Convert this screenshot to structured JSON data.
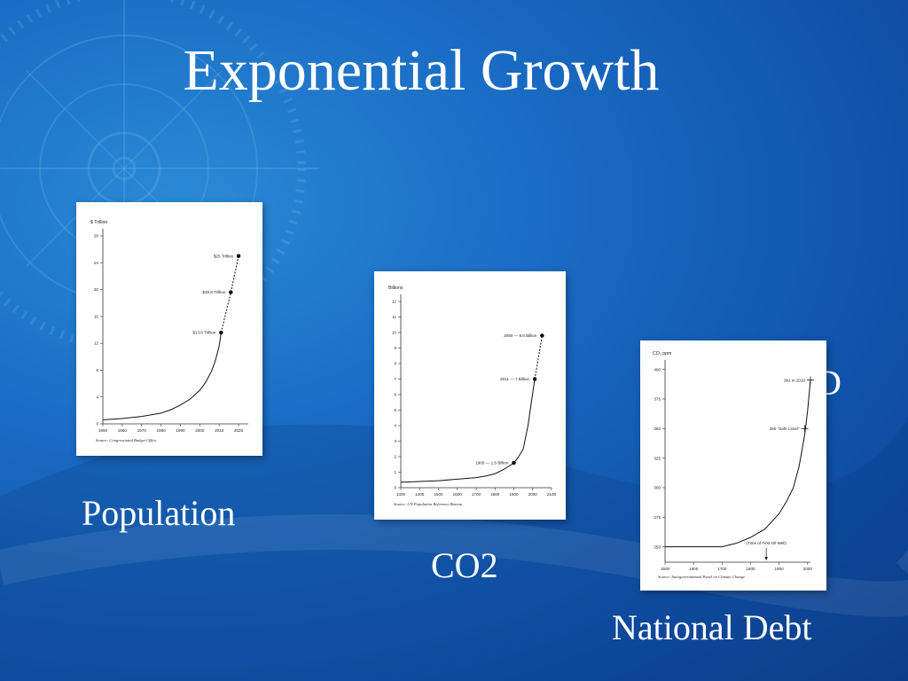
{
  "slide": {
    "title": "Exponential Growth",
    "captions": {
      "population": "Population",
      "co2": "CO2",
      "debt": "National Debt"
    },
    "ghost_text": "D"
  },
  "chart_data": [
    {
      "id": "debt",
      "type": "line",
      "ylabel": "$ Trillion",
      "ylim": [
        0,
        28
      ],
      "yticks": [
        0,
        4,
        8,
        12,
        16,
        20,
        24,
        28
      ],
      "xlim": [
        1950,
        2025
      ],
      "xticks": [
        1950,
        1960,
        1970,
        1980,
        1990,
        2000,
        2010,
        2020
      ],
      "source": "Source: Congressional Budget Office",
      "series": [
        {
          "style": "solid",
          "x": [
            1950,
            1960,
            1970,
            1980,
            1985,
            1990,
            1995,
            2000,
            2003,
            2006,
            2008,
            2010,
            2011
          ],
          "y": [
            0.6,
            0.8,
            1.1,
            1.6,
            2.1,
            2.8,
            3.7,
            5.0,
            6.2,
            7.8,
            9.4,
            11.6,
            13.6
          ]
        },
        {
          "style": "dashed",
          "x": [
            2011,
            2016,
            2020
          ],
          "y": [
            13.6,
            19.6,
            25
          ]
        }
      ],
      "points": [
        {
          "x": 2011,
          "y": 13.6,
          "label": "$13.6 Trillion"
        },
        {
          "x": 2016,
          "y": 19.6,
          "label": "$19.6 Trillion"
        },
        {
          "x": 2020,
          "y": 25,
          "label": "$25 Trillion"
        }
      ]
    },
    {
      "id": "population",
      "type": "line",
      "ylabel": "Billions",
      "ylim": [
        0,
        12
      ],
      "yticks": [
        0,
        1,
        2,
        3,
        4,
        5,
        6,
        7,
        8,
        9,
        10,
        11,
        12
      ],
      "xlim": [
        1300,
        2100
      ],
      "xticks": [
        1300,
        1400,
        1500,
        1600,
        1700,
        1800,
        1900,
        2000,
        2100
      ],
      "source": "Source: UN Population Reference Bureau",
      "series": [
        {
          "style": "solid",
          "x": [
            1300,
            1400,
            1500,
            1600,
            1700,
            1750,
            1800,
            1850,
            1900,
            1925,
            1950,
            1975,
            2000,
            2011
          ],
          "y": [
            0.35,
            0.4,
            0.45,
            0.55,
            0.65,
            0.75,
            0.9,
            1.2,
            1.6,
            2.0,
            2.5,
            4.0,
            6.1,
            7.0
          ]
        },
        {
          "style": "dashed",
          "x": [
            2011,
            2050
          ],
          "y": [
            7.0,
            9.8
          ]
        }
      ],
      "points": [
        {
          "x": 1900,
          "y": 1.6,
          "label": "1900 — 1.6 Billion"
        },
        {
          "x": 2011,
          "y": 7.0,
          "label": "2011 — 7 Billion"
        },
        {
          "x": 2050,
          "y": 9.8,
          "label": "2050 — 9.8 Billion"
        }
      ]
    },
    {
      "id": "co2",
      "type": "line",
      "ylabel": "CO₂ ppm",
      "ylim": [
        237,
        402
      ],
      "yticks": [
        250,
        275,
        300,
        325,
        350,
        375,
        400
      ],
      "xlim": [
        1500,
        2010
      ],
      "xticks": [
        1500,
        1600,
        1700,
        1800,
        1900,
        2000
      ],
      "source": "Source: Intergovernmental Panel on Climate Change",
      "series": [
        {
          "style": "solid",
          "x": [
            1500,
            1600,
            1700,
            1750,
            1800,
            1850,
            1900,
            1925,
            1950,
            1970,
            1990,
            2000,
            2010
          ],
          "y": [
            250,
            250,
            250,
            253,
            258,
            265,
            278,
            288,
            300,
            318,
            345,
            365,
            391
          ]
        }
      ],
      "points": [
        {
          "x": 2010,
          "y": 391,
          "label": "391 in 2010",
          "marker": "cross"
        },
        {
          "x": 1990,
          "y": 350,
          "label": "350 \"Safe Level\"",
          "marker": "cross"
        }
      ],
      "annotation": {
        "x": 1855,
        "label": "(Time of First Oil Well)"
      }
    }
  ]
}
